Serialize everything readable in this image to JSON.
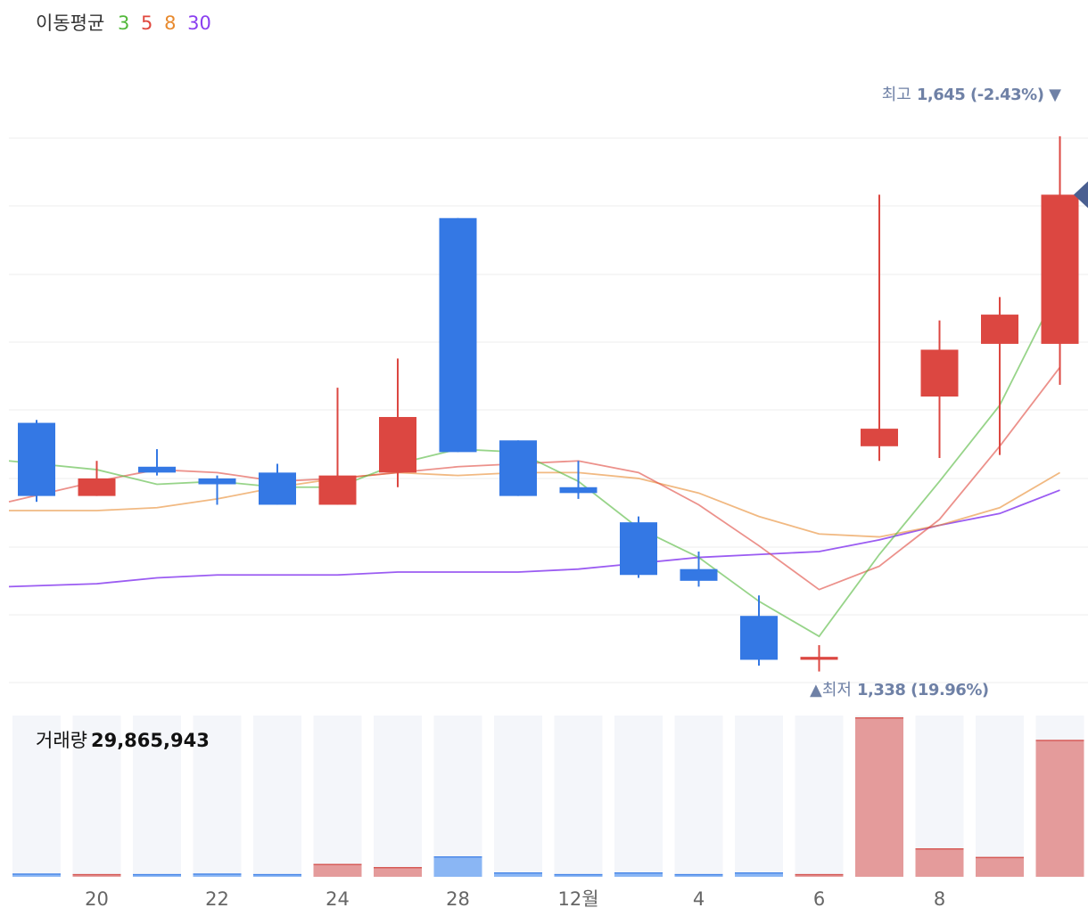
{
  "legend": {
    "title": "이동평균",
    "periods": [
      {
        "label": "3",
        "color": "#52b83a"
      },
      {
        "label": "5",
        "color": "#e0483e"
      },
      {
        "label": "8",
        "color": "#e88a2e"
      },
      {
        "label": "30",
        "color": "#8a3ff0"
      }
    ]
  },
  "volume_label": {
    "text": "거래량",
    "value": "29,865,943"
  },
  "annotations": {
    "high": {
      "label": "최고",
      "value": "1,645 (-2.43%)",
      "arrow": "▼"
    },
    "low": {
      "arrow": "▲",
      "label": "최저",
      "value": "1,338 (19.96%)"
    }
  },
  "colors": {
    "up": "#dc4741",
    "down": "#3478e4",
    "grid": "#eeeeee",
    "volume_bg": "#f4f6fa",
    "marker": "#4a5f91"
  },
  "chart_data": {
    "type": "candlestick",
    "x_tick_labels": [
      {
        "index": 1,
        "label": "20"
      },
      {
        "index": 3,
        "label": "22"
      },
      {
        "index": 5,
        "label": "24"
      },
      {
        "index": 7,
        "label": "28"
      },
      {
        "index": 9,
        "label": "12월"
      },
      {
        "index": 11,
        "label": "4"
      },
      {
        "index": 13,
        "label": "6"
      },
      {
        "index": 15,
        "label": "8"
      }
    ],
    "candles": [
      {
        "open": 1438,
        "close": 1413,
        "high": 1439,
        "low": 1411,
        "volume": 0.5
      },
      {
        "open": 1413,
        "close": 1419,
        "high": 1425,
        "low": 1413,
        "volume": 0.4
      },
      {
        "open": 1423,
        "close": 1421,
        "high": 1429,
        "low": 1420,
        "volume": 0.4
      },
      {
        "open": 1419,
        "close": 1417,
        "high": 1420,
        "low": 1410,
        "volume": 0.5
      },
      {
        "open": 1421,
        "close": 1410,
        "high": 1424,
        "low": 1410,
        "volume": 0.4
      },
      {
        "open": 1410,
        "close": 1420,
        "high": 1450,
        "low": 1410,
        "volume": 2.3
      },
      {
        "open": 1421,
        "close": 1440,
        "high": 1460,
        "low": 1416,
        "volume": 1.7
      },
      {
        "open": 1508,
        "close": 1428,
        "high": 1508,
        "low": 1428,
        "volume": 3.7
      },
      {
        "open": 1432,
        "close": 1413,
        "high": 1432,
        "low": 1413,
        "volume": 0.7
      },
      {
        "open": 1416,
        "close": 1414,
        "high": 1425,
        "low": 1412,
        "volume": 0.4
      },
      {
        "open": 1404,
        "close": 1386,
        "high": 1406,
        "low": 1385,
        "volume": 0.7
      },
      {
        "open": 1388,
        "close": 1384,
        "high": 1394,
        "low": 1382,
        "volume": 0.4
      },
      {
        "open": 1372,
        "close": 1357,
        "high": 1379,
        "low": 1355,
        "volume": 0.7
      },
      {
        "open": 1357,
        "close": 1358,
        "high": 1362,
        "low": 1353,
        "volume": 0.4
      },
      {
        "open": 1430,
        "close": 1436,
        "high": 1516,
        "low": 1425,
        "volume": 29.7
      },
      {
        "open": 1447,
        "close": 1463,
        "high": 1473,
        "low": 1426,
        "volume": 5.2
      },
      {
        "open": 1465,
        "close": 1475,
        "high": 1481,
        "low": 1427,
        "volume": 3.6
      },
      {
        "open": 1465,
        "close": 1516,
        "high": 1536,
        "low": 1451,
        "volume": 25.5
      }
    ],
    "moving_averages": {
      "3": [
        1425,
        1422,
        1417,
        1418,
        1416,
        1416,
        1424,
        1429,
        1428,
        1418,
        1402,
        1392,
        1377,
        1365,
        1393,
        1418,
        1444,
        1485
      ],
      "5": [
        1411,
        1418,
        1422,
        1421,
        1418,
        1419,
        1421,
        1423,
        1424,
        1425,
        1421,
        1410,
        1396,
        1381,
        1389,
        1405,
        1430,
        1457
      ],
      "8": [
        1408,
        1408,
        1409,
        1412,
        1416,
        1419,
        1421,
        1420,
        1421,
        1421,
        1419,
        1414,
        1406,
        1400,
        1399,
        1403,
        1409,
        1421
      ],
      "30": [
        1382,
        1383,
        1385,
        1386,
        1386,
        1386,
        1387,
        1387,
        1387,
        1388,
        1390,
        1392,
        1393,
        1394,
        1398,
        1403,
        1407,
        1415
      ]
    },
    "y_range": [
      1348,
      1546
    ],
    "grid": true,
    "current_marker": 1516
  }
}
